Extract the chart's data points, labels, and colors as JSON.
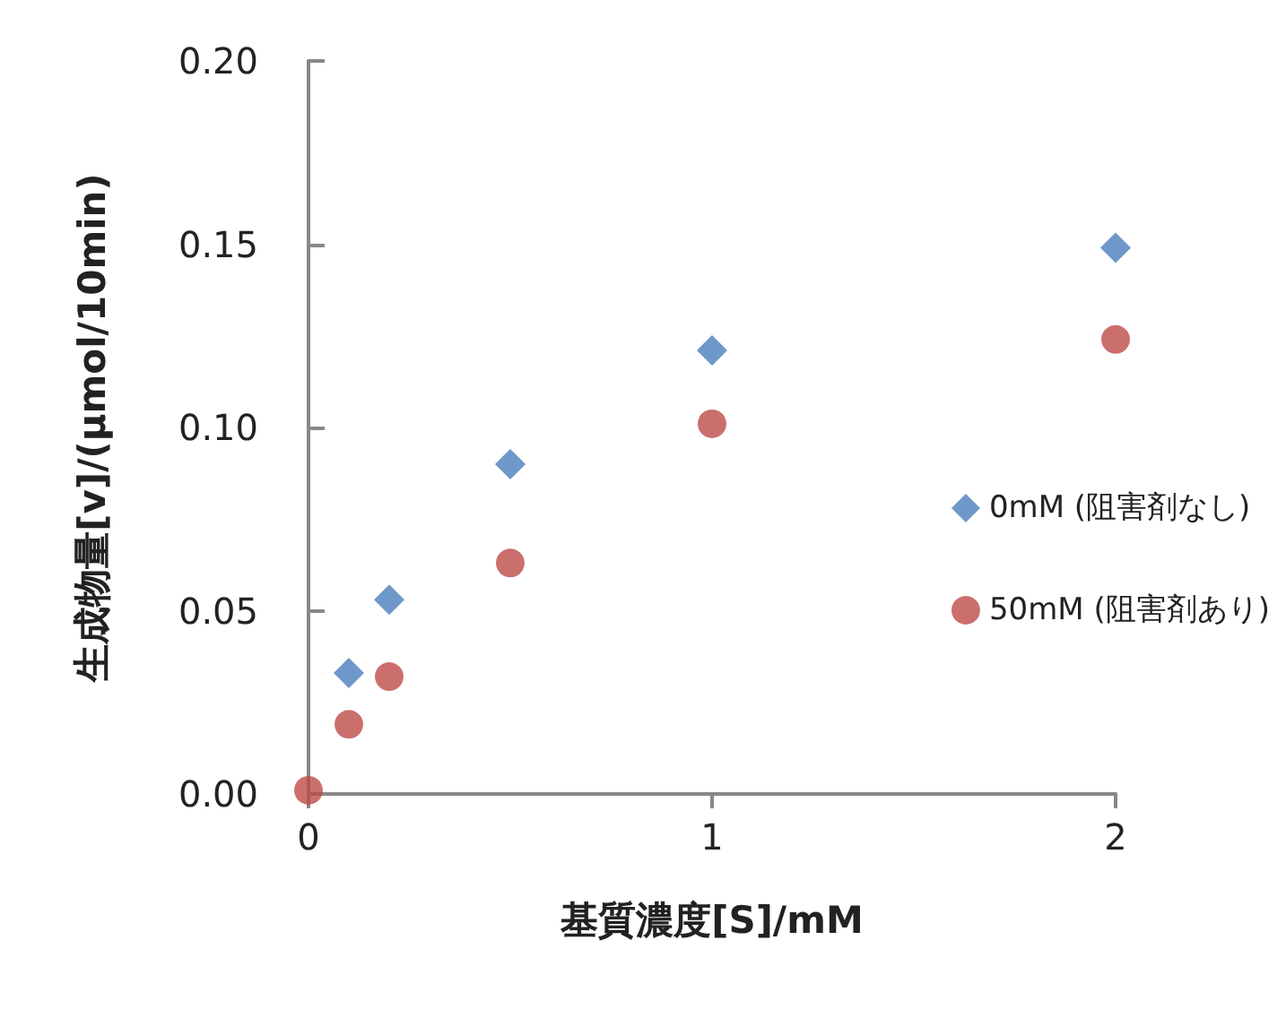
{
  "chart_data": {
    "type": "scatter",
    "xlabel": "基質濃度[S]/mM",
    "ylabel": "生成物量[v]/(μmol/10min)",
    "series": [
      {
        "name": "0mM (阻害剤なし)",
        "color": "#4a7ebb",
        "marker": "diamond",
        "x": [
          0.1,
          0.2,
          0.5,
          1,
          2
        ],
        "values": [
          0.033,
          0.053,
          0.09,
          0.121,
          0.149
        ]
      },
      {
        "name": "50mM (阻害剤あり)",
        "color": "#be4b48",
        "marker": "circle",
        "x": [
          0,
          0.1,
          0.2,
          0.5,
          1,
          2
        ],
        "values": [
          0.001,
          0.019,
          0.032,
          0.063,
          0.101,
          0.124
        ]
      }
    ],
    "xlim": [
      0,
      2
    ],
    "xticks": [
      0,
      1,
      2
    ],
    "ylim": [
      0,
      0.2
    ],
    "yticks": [
      {
        "value": 0,
        "label": "0.00"
      },
      {
        "value": 0.05,
        "label": "0.05"
      },
      {
        "value": 0.1,
        "label": "0.10"
      },
      {
        "value": 0.15,
        "label": "0.15"
      },
      {
        "value": 0.2,
        "label": "0.20"
      }
    ],
    "grid": false,
    "legend": "right"
  }
}
